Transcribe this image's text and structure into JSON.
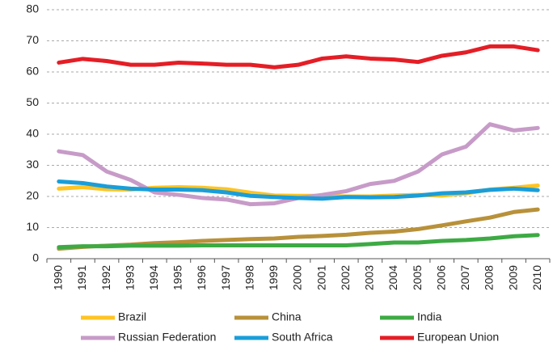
{
  "chart_data": {
    "type": "line",
    "categories": [
      "1990",
      "1991",
      "1992",
      "1993",
      "1994",
      "1995",
      "1996",
      "1997",
      "1998",
      "1999",
      "2000",
      "2001",
      "2002",
      "2003",
      "2004",
      "2005",
      "2006",
      "2007",
      "2008",
      "2009",
      "2010"
    ],
    "series": [
      {
        "name": "Brazil",
        "color": "#ffc425",
        "values": [
          22.5,
          23,
          22.3,
          22.2,
          22.8,
          23,
          22.8,
          22.3,
          21.2,
          20.3,
          20.2,
          20.2,
          20,
          20,
          20.3,
          20.5,
          20.3,
          21,
          22.2,
          22.8,
          23.5
        ]
      },
      {
        "name": "China",
        "color": "#b8913a",
        "values": [
          3.2,
          3.8,
          4.2,
          4.5,
          5,
          5.3,
          5.7,
          6,
          6.3,
          6.5,
          7,
          7.3,
          7.7,
          8.3,
          8.7,
          9.5,
          10.7,
          12,
          13.2,
          15,
          15.8
        ]
      },
      {
        "name": "India",
        "color": "#3daa44",
        "values": [
          3.7,
          4,
          4,
          4.2,
          4.2,
          4.2,
          4.3,
          4.3,
          4.3,
          4.3,
          4.3,
          4.3,
          4.3,
          4.7,
          5.2,
          5.2,
          5.7,
          6,
          6.5,
          7.2,
          7.6
        ]
      },
      {
        "name": "Russian Federation",
        "color": "#c79bc8",
        "values": [
          34.5,
          33.3,
          28,
          25.3,
          21.3,
          20.5,
          19.5,
          19,
          17.5,
          17.8,
          19.5,
          20.5,
          21.7,
          24,
          25,
          28,
          33.5,
          36,
          43.2,
          41.2,
          42
        ]
      },
      {
        "name": "South Africa",
        "color": "#1a9ed9",
        "values": [
          24.8,
          24.3,
          23.2,
          22.5,
          22.2,
          22.2,
          22,
          21.3,
          20.2,
          19.8,
          19.5,
          19.3,
          19.8,
          19.7,
          19.8,
          20.3,
          21,
          21.3,
          22.1,
          22.5,
          22
        ]
      },
      {
        "name": "European Union",
        "color": "#e41e26",
        "values": [
          63,
          64.2,
          63.5,
          62.3,
          62.3,
          63,
          62.7,
          62.3,
          62.3,
          61.5,
          62.3,
          64.3,
          65,
          64.3,
          64,
          63.2,
          65.2,
          66.3,
          68.2,
          68.2,
          67
        ]
      }
    ],
    "ylim": [
      0,
      80
    ],
    "yticks": [
      0,
      10,
      20,
      30,
      40,
      50,
      60,
      70,
      80
    ],
    "grid": true,
    "legend": "bottom"
  }
}
